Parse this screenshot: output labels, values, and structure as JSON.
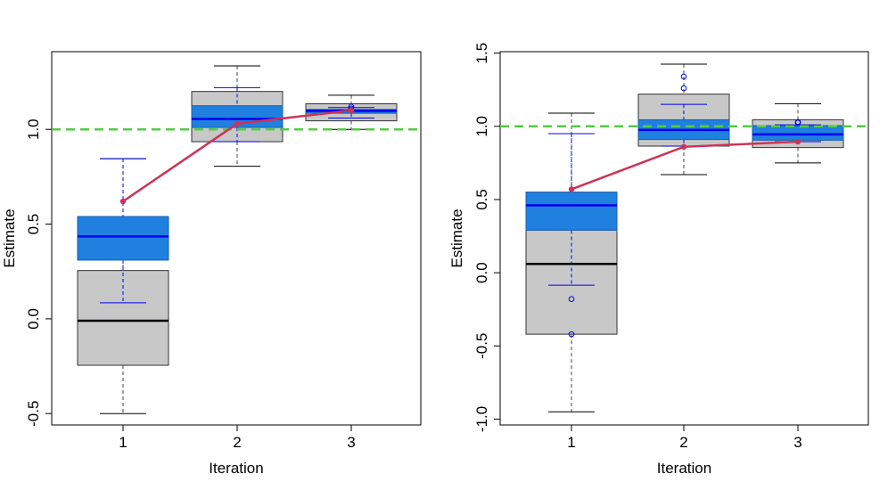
{
  "chart_data": [
    {
      "type": "boxplot",
      "xlabel": "Iteration",
      "ylabel": "Estimate",
      "categories": [
        "1",
        "2",
        "3"
      ],
      "yticks": [
        -0.5,
        0.0,
        0.5,
        1.0
      ],
      "ytick_labels": [
        "-0.5",
        "0.0",
        "0.5",
        "1.0"
      ],
      "ylim": [
        -0.56,
        1.41
      ],
      "reference_line": 1.0,
      "grey_boxes": [
        {
          "category": "1",
          "min": -0.5,
          "q1": -0.245,
          "median": -0.01,
          "q3": 0.255,
          "max": 0.845
        },
        {
          "category": "2",
          "min": 0.805,
          "q1": 0.935,
          "median": 1.055,
          "q3": 1.2,
          "max": 1.335
        },
        {
          "category": "3",
          "min": 1.0,
          "q1": 1.045,
          "median": 1.095,
          "q3": 1.135,
          "max": 1.18
        }
      ],
      "blue_boxes": [
        {
          "category": "1",
          "min": 0.085,
          "q1": 0.31,
          "median": 0.435,
          "q3": 0.54,
          "max": 0.845
        },
        {
          "category": "2",
          "min": 0.935,
          "q1": 1.01,
          "median": 1.055,
          "q3": 1.125,
          "max": 1.22
        },
        {
          "category": "3",
          "min": 1.06,
          "q1": 1.085,
          "median": 1.098,
          "q3": 1.105,
          "max": 1.115
        }
      ],
      "blue_outliers": [
        {
          "category": "3",
          "y": 1.12
        },
        {
          "category": "3",
          "y": 1.11
        }
      ],
      "trend": [
        0.62,
        1.03,
        1.1
      ],
      "colors": {
        "grey_box": "#c8c8c8",
        "blue_box": "#1f80e0",
        "blue_line": "#0000ee",
        "trend": "#cc3355",
        "reference": "#55cc44"
      }
    },
    {
      "type": "boxplot",
      "xlabel": "Iteration",
      "ylabel": "Estimate",
      "categories": [
        "1",
        "2",
        "3"
      ],
      "yticks": [
        -1.0,
        -0.5,
        0.0,
        0.5,
        1.0,
        1.5
      ],
      "ytick_labels": [
        "-1.0",
        "-0.5",
        "0.0",
        "0.5",
        "1.0",
        "1.5"
      ],
      "ylim": [
        -1.04,
        1.51
      ],
      "reference_line": 1.0,
      "grey_boxes": [
        {
          "category": "1",
          "min": -0.95,
          "q1": -0.42,
          "median": 0.06,
          "q3": 0.55,
          "max": 1.09
        },
        {
          "category": "2",
          "min": 0.67,
          "q1": 0.865,
          "median": 0.96,
          "q3": 1.22,
          "max": 1.425
        },
        {
          "category": "3",
          "min": 0.75,
          "q1": 0.855,
          "median": 0.94,
          "q3": 1.045,
          "max": 1.155
        }
      ],
      "blue_boxes": [
        {
          "category": "1",
          "min": -0.085,
          "q1": 0.29,
          "median": 0.46,
          "q3": 0.55,
          "max": 0.95
        },
        {
          "category": "2",
          "min": 0.865,
          "q1": 0.91,
          "median": 0.975,
          "q3": 1.045,
          "max": 1.15
        },
        {
          "category": "3",
          "min": 0.895,
          "q1": 0.905,
          "median": 0.945,
          "q3": 1.005,
          "max": 1.01
        }
      ],
      "blue_outliers": [
        {
          "category": "1",
          "y": -0.18
        },
        {
          "category": "1",
          "y": -0.42
        },
        {
          "category": "2",
          "y": 1.34
        },
        {
          "category": "2",
          "y": 1.26
        },
        {
          "category": "3",
          "y": 1.03
        },
        {
          "category": "3",
          "y": 1.025
        }
      ],
      "trend": [
        0.57,
        0.86,
        0.895
      ],
      "colors": {
        "grey_box": "#c8c8c8",
        "blue_box": "#1f80e0",
        "blue_line": "#0000ee",
        "trend": "#cc3355",
        "reference": "#55cc44"
      }
    }
  ]
}
